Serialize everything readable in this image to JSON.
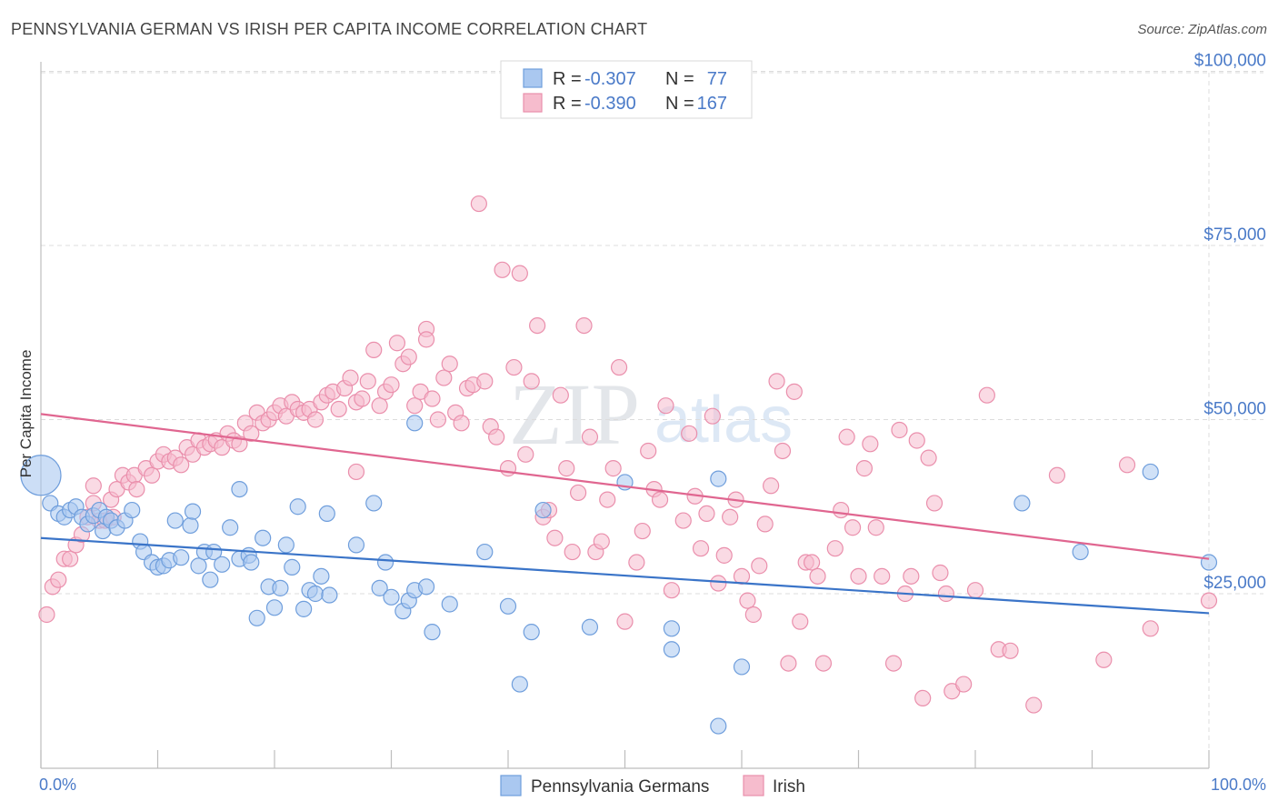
{
  "header": {
    "title": "PENNSYLVANIA GERMAN VS IRISH PER CAPITA INCOME CORRELATION CHART",
    "source": "Source: ZipAtlas.com"
  },
  "watermark": {
    "zip": "ZIP",
    "atlas": "atlas"
  },
  "legend": {
    "series": [
      {
        "r_label": "R =",
        "r_value": "-0.307",
        "n_label": "N =",
        "n_value": "77"
      },
      {
        "r_label": "R =",
        "r_value": "-0.390",
        "n_label": "N =",
        "n_value": "167"
      }
    ]
  },
  "colors": {
    "blue_fill": "#aac8f0",
    "blue_stroke": "#6f9edc",
    "blue_line": "#3a74c8",
    "pink_fill": "#f6bccd",
    "pink_stroke": "#ea8fac",
    "pink_line": "#e06690",
    "axis_label": "#4a7ac8",
    "grid": "#dcdcdc"
  },
  "chart_data": {
    "type": "scatter",
    "title": "PENNSYLVANIA GERMAN VS IRISH PER CAPITA INCOME CORRELATION CHART",
    "xlabel": "",
    "ylabel": "Per Capita Income",
    "xlim": [
      0,
      100
    ],
    "ylim": [
      0,
      105000
    ],
    "x_tick_labels": [
      "0.0%",
      "100.0%"
    ],
    "y_ticks": [
      {
        "value": 25000,
        "label": "$25,000"
      },
      {
        "value": 50000,
        "label": "$50,000"
      },
      {
        "value": 75000,
        "label": "$75,000"
      },
      {
        "value": 100000,
        "label": "$100,000"
      }
    ],
    "grid": true,
    "legend_position": "top-center",
    "series": [
      {
        "name": "Pennsylvania Germans",
        "r": -0.307,
        "n": 77,
        "trend": {
          "x0": 0,
          "y0": 33000,
          "x1": 100,
          "y1": 22200
        },
        "big_point": {
          "x": 0,
          "y": 42000
        },
        "points": [
          [
            0.8,
            38000
          ],
          [
            1.5,
            36500
          ],
          [
            2,
            36000
          ],
          [
            2.5,
            37000
          ],
          [
            3,
            37500
          ],
          [
            3.5,
            36000
          ],
          [
            4,
            35000
          ],
          [
            4.5,
            36200
          ],
          [
            5,
            37000
          ],
          [
            5.3,
            34000
          ],
          [
            5.6,
            36000
          ],
          [
            6,
            35500
          ],
          [
            6.5,
            34500
          ],
          [
            7.2,
            35500
          ],
          [
            7.8,
            37000
          ],
          [
            8.5,
            32500
          ],
          [
            8.8,
            31000
          ],
          [
            9.5,
            29500
          ],
          [
            10,
            28800
          ],
          [
            10.5,
            29000
          ],
          [
            11,
            29800
          ],
          [
            11.5,
            35500
          ],
          [
            12,
            30200
          ],
          [
            12.8,
            34800
          ],
          [
            13,
            36800
          ],
          [
            13.5,
            29000
          ],
          [
            14,
            31000
          ],
          [
            14.5,
            27000
          ],
          [
            14.8,
            31000
          ],
          [
            15.5,
            29200
          ],
          [
            16.2,
            34500
          ],
          [
            17,
            30000
          ],
          [
            17,
            40000
          ],
          [
            17.8,
            30500
          ],
          [
            18,
            29500
          ],
          [
            18.5,
            21500
          ],
          [
            19,
            33000
          ],
          [
            19.5,
            26000
          ],
          [
            20,
            23000
          ],
          [
            20.5,
            25800
          ],
          [
            21,
            32000
          ],
          [
            21.5,
            28800
          ],
          [
            22,
            37500
          ],
          [
            22.5,
            22800
          ],
          [
            23,
            25500
          ],
          [
            23.5,
            25000
          ],
          [
            24,
            27500
          ],
          [
            24.5,
            36500
          ],
          [
            24.7,
            24800
          ],
          [
            27,
            32000
          ],
          [
            28.5,
            38000
          ],
          [
            29,
            25800
          ],
          [
            29.5,
            29500
          ],
          [
            30,
            24500
          ],
          [
            31,
            22500
          ],
          [
            31.5,
            24000
          ],
          [
            32,
            25500
          ],
          [
            33,
            26000
          ],
          [
            33.5,
            19500
          ],
          [
            32,
            49500
          ],
          [
            35,
            23500
          ],
          [
            38,
            31000
          ],
          [
            40,
            23200
          ],
          [
            41,
            12000
          ],
          [
            42,
            19500
          ],
          [
            43,
            37000
          ],
          [
            47,
            20200
          ],
          [
            54,
            20000
          ],
          [
            54,
            17000
          ],
          [
            58,
            41500
          ],
          [
            58,
            6000
          ],
          [
            60,
            14500
          ],
          [
            84,
            38000
          ],
          [
            95,
            42500
          ],
          [
            100,
            29500
          ],
          [
            50,
            41000
          ],
          [
            89,
            31000
          ]
        ]
      },
      {
        "name": "Irish",
        "r": -0.39,
        "n": 167,
        "trend": {
          "x0": 0,
          "y0": 50800,
          "x1": 100,
          "y1": 30000
        },
        "points": [
          [
            0.5,
            22000
          ],
          [
            1,
            26000
          ],
          [
            1.5,
            27000
          ],
          [
            2,
            30000
          ],
          [
            2.5,
            30000
          ],
          [
            3,
            32000
          ],
          [
            3.5,
            33500
          ],
          [
            4,
            36000
          ],
          [
            4.5,
            38000
          ],
          [
            4.5,
            40500
          ],
          [
            5,
            35500
          ],
          [
            5.5,
            35500
          ],
          [
            6,
            38500
          ],
          [
            6.2,
            36000
          ],
          [
            6.5,
            40000
          ],
          [
            7,
            42000
          ],
          [
            7.5,
            41000
          ],
          [
            8,
            42000
          ],
          [
            8.2,
            40000
          ],
          [
            9,
            43000
          ],
          [
            9.5,
            42000
          ],
          [
            10,
            44000
          ],
          [
            10.5,
            45000
          ],
          [
            11,
            44000
          ],
          [
            11.5,
            44500
          ],
          [
            12,
            43500
          ],
          [
            12.5,
            46000
          ],
          [
            13,
            45000
          ],
          [
            13.5,
            47000
          ],
          [
            14,
            46000
          ],
          [
            14.5,
            46500
          ],
          [
            15,
            47000
          ],
          [
            15.5,
            46000
          ],
          [
            16,
            48000
          ],
          [
            16.5,
            47000
          ],
          [
            17,
            46500
          ],
          [
            17.5,
            49500
          ],
          [
            18,
            48000
          ],
          [
            18.5,
            51000
          ],
          [
            19,
            49500
          ],
          [
            19.5,
            50000
          ],
          [
            20,
            51000
          ],
          [
            20.5,
            52000
          ],
          [
            21,
            50500
          ],
          [
            21.5,
            52500
          ],
          [
            22,
            51500
          ],
          [
            22.5,
            51000
          ],
          [
            23,
            51500
          ],
          [
            23.5,
            50000
          ],
          [
            24,
            52500
          ],
          [
            24.5,
            53500
          ],
          [
            25,
            54000
          ],
          [
            25.5,
            51500
          ],
          [
            26,
            54500
          ],
          [
            26.5,
            56000
          ],
          [
            27,
            52500
          ],
          [
            27.5,
            53000
          ],
          [
            28,
            55500
          ],
          [
            28.5,
            60000
          ],
          [
            29,
            52000
          ],
          [
            29.5,
            54000
          ],
          [
            30,
            55000
          ],
          [
            30.5,
            61000
          ],
          [
            31,
            58000
          ],
          [
            31.5,
            59000
          ],
          [
            32,
            52000
          ],
          [
            32.5,
            54000
          ],
          [
            33,
            63000
          ],
          [
            33.5,
            53000
          ],
          [
            34,
            50000
          ],
          [
            34.5,
            56000
          ],
          [
            35,
            58000
          ],
          [
            35.5,
            51000
          ],
          [
            36,
            49500
          ],
          [
            36.5,
            54500
          ],
          [
            37,
            55000
          ],
          [
            37.5,
            81000
          ],
          [
            38,
            55500
          ],
          [
            38.5,
            49000
          ],
          [
            39,
            47500
          ],
          [
            39.5,
            71500
          ],
          [
            40,
            43000
          ],
          [
            40.5,
            57500
          ],
          [
            41,
            71000
          ],
          [
            41.5,
            45000
          ],
          [
            42,
            55500
          ],
          [
            42.5,
            63500
          ],
          [
            43,
            36000
          ],
          [
            43.5,
            37000
          ],
          [
            44,
            33000
          ],
          [
            44.5,
            53500
          ],
          [
            45,
            43000
          ],
          [
            45.5,
            31000
          ],
          [
            46,
            39500
          ],
          [
            46.5,
            63500
          ],
          [
            47,
            47500
          ],
          [
            47.5,
            31000
          ],
          [
            48,
            32500
          ],
          [
            48.5,
            38500
          ],
          [
            49,
            43000
          ],
          [
            49.5,
            57500
          ],
          [
            50,
            21000
          ],
          [
            51,
            29500
          ],
          [
            51.5,
            34000
          ],
          [
            52,
            45500
          ],
          [
            52.5,
            40000
          ],
          [
            53,
            38500
          ],
          [
            53.5,
            52000
          ],
          [
            54,
            25500
          ],
          [
            55,
            35500
          ],
          [
            55.5,
            48000
          ],
          [
            56,
            39000
          ],
          [
            56.5,
            31500
          ],
          [
            57,
            36500
          ],
          [
            57.5,
            50500
          ],
          [
            58,
            26500
          ],
          [
            58.5,
            30500
          ],
          [
            59,
            36000
          ],
          [
            59.5,
            38500
          ],
          [
            60,
            27500
          ],
          [
            60.5,
            24000
          ],
          [
            61,
            22000
          ],
          [
            61.5,
            29000
          ],
          [
            62,
            35000
          ],
          [
            62.5,
            40500
          ],
          [
            63,
            55500
          ],
          [
            63.5,
            45500
          ],
          [
            64,
            15000
          ],
          [
            64.5,
            54000
          ],
          [
            65,
            21000
          ],
          [
            65.5,
            29500
          ],
          [
            66,
            29500
          ],
          [
            66.5,
            27500
          ],
          [
            67,
            15000
          ],
          [
            68,
            31500
          ],
          [
            68.5,
            37000
          ],
          [
            69,
            47500
          ],
          [
            69.5,
            34500
          ],
          [
            70,
            27500
          ],
          [
            70.5,
            43000
          ],
          [
            71,
            46500
          ],
          [
            71.5,
            34500
          ],
          [
            72,
            27500
          ],
          [
            73,
            15000
          ],
          [
            73.5,
            48500
          ],
          [
            74,
            25000
          ],
          [
            74.5,
            27500
          ],
          [
            75,
            47000
          ],
          [
            75.5,
            10000
          ],
          [
            76,
            44500
          ],
          [
            76.5,
            38000
          ],
          [
            77,
            28000
          ],
          [
            77.5,
            25000
          ],
          [
            78,
            11000
          ],
          [
            79,
            12000
          ],
          [
            80,
            25500
          ],
          [
            81,
            53500
          ],
          [
            82,
            17000
          ],
          [
            83,
            16800
          ],
          [
            85,
            9000
          ],
          [
            87,
            42000
          ],
          [
            91,
            15500
          ],
          [
            93,
            43500
          ],
          [
            95,
            20000
          ],
          [
            100,
            24000
          ],
          [
            27,
            42500
          ],
          [
            33,
            61500
          ]
        ]
      }
    ]
  },
  "bottom_legend": {
    "items": [
      {
        "label": "Pennsylvania Germans"
      },
      {
        "label": "Irish"
      }
    ]
  }
}
